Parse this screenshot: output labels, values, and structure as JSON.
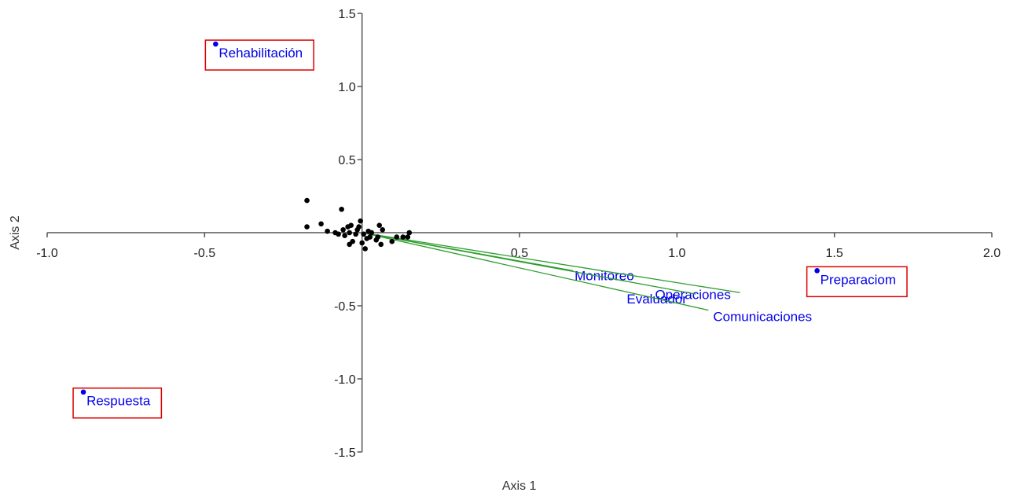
{
  "chart_data": {
    "type": "scatter",
    "title": "",
    "xlabel": "Axis 1",
    "ylabel": "Axis 2",
    "xlim": [
      -1.0,
      2.0
    ],
    "ylim": [
      -1.5,
      1.5
    ],
    "x_ticks": [
      -1.0,
      -0.5,
      0.5,
      1.0,
      1.5,
      2.0
    ],
    "y_ticks": [
      1.5,
      1.0,
      0.5,
      -0.5,
      -1.0,
      -1.5
    ],
    "x_tick_labels": [
      "-1.0",
      "-0.5",
      "0.5",
      "1.0",
      "1.5",
      "2.0"
    ],
    "y_tick_labels": [
      "1.5",
      "1.0",
      "0.5",
      "-0.5",
      "-1.0",
      "-1.5"
    ],
    "grid": false,
    "colors": {
      "groups": "#0000ee",
      "points": "#000000",
      "vectors": "#2e9e2e",
      "boxes": "#dd0000",
      "axes": "#555555"
    },
    "groups": [
      {
        "label": "Rehabilitación",
        "x": -0.465,
        "y": 1.29,
        "boxed": true
      },
      {
        "label": "Respuesta",
        "x": -0.885,
        "y": -1.09,
        "boxed": true
      },
      {
        "label": "Preparaciom",
        "x": 1.445,
        "y": -0.26,
        "boxed": true
      }
    ],
    "vectors": [
      {
        "label": "Monitoreo",
        "x": 0.67,
        "y": -0.26
      },
      {
        "label": "Operaciones",
        "x": 1.2,
        "y": -0.41
      },
      {
        "label": "Evaluador",
        "x": 1.06,
        "y": -0.42
      },
      {
        "label": "Comunicaciones",
        "x": 1.1,
        "y": -0.53
      }
    ],
    "points": [
      {
        "x": -0.175,
        "y": 0.22
      },
      {
        "x": -0.175,
        "y": 0.04
      },
      {
        "x": -0.13,
        "y": 0.06
      },
      {
        "x": -0.11,
        "y": 0.01
      },
      {
        "x": -0.085,
        "y": 0.0
      },
      {
        "x": -0.075,
        "y": -0.01
      },
      {
        "x": -0.065,
        "y": 0.16
      },
      {
        "x": -0.06,
        "y": 0.02
      },
      {
        "x": -0.055,
        "y": -0.02
      },
      {
        "x": -0.045,
        "y": 0.04
      },
      {
        "x": -0.04,
        "y": 0.0
      },
      {
        "x": -0.04,
        "y": -0.08
      },
      {
        "x": -0.035,
        "y": 0.05
      },
      {
        "x": -0.03,
        "y": -0.06
      },
      {
        "x": -0.02,
        "y": -0.01
      },
      {
        "x": -0.015,
        "y": 0.02
      },
      {
        "x": -0.01,
        "y": 0.04
      },
      {
        "x": -0.005,
        "y": 0.08
      },
      {
        "x": 0.0,
        "y": -0.07
      },
      {
        "x": 0.005,
        "y": -0.01
      },
      {
        "x": 0.01,
        "y": -0.11
      },
      {
        "x": 0.015,
        "y": -0.04
      },
      {
        "x": 0.02,
        "y": 0.01
      },
      {
        "x": 0.025,
        "y": -0.03
      },
      {
        "x": 0.03,
        "y": 0.0
      },
      {
        "x": 0.045,
        "y": -0.05
      },
      {
        "x": 0.05,
        "y": -0.03
      },
      {
        "x": 0.055,
        "y": 0.05
      },
      {
        "x": 0.065,
        "y": 0.02
      },
      {
        "x": 0.06,
        "y": -0.08
      },
      {
        "x": 0.095,
        "y": -0.06
      },
      {
        "x": 0.11,
        "y": -0.03
      },
      {
        "x": 0.13,
        "y": -0.03
      },
      {
        "x": 0.145,
        "y": -0.03
      },
      {
        "x": 0.15,
        "y": 0.0
      }
    ]
  }
}
